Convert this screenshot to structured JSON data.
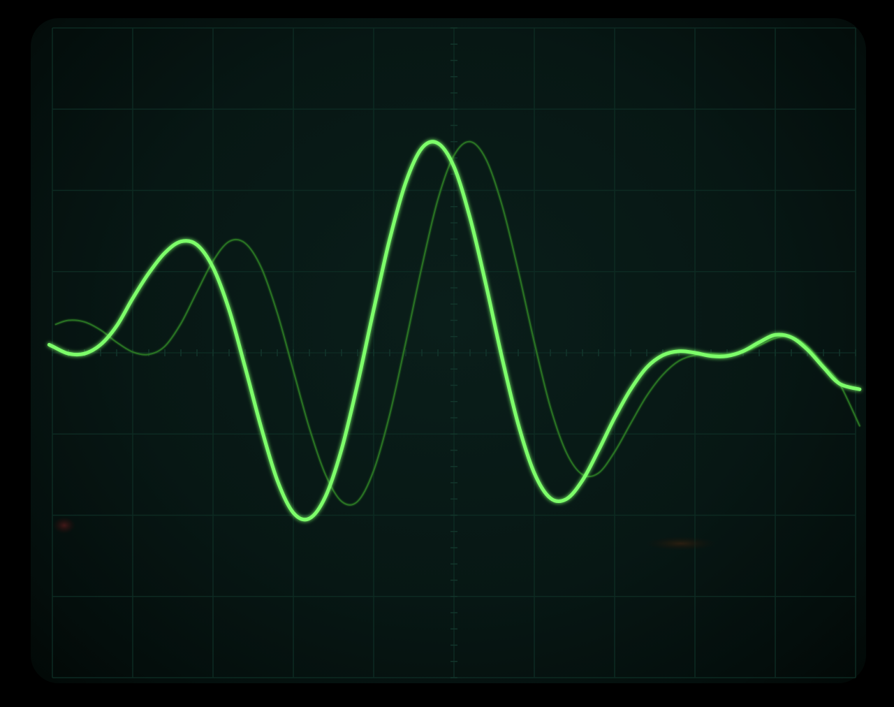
{
  "chart_data": {
    "type": "line",
    "title": "",
    "xlabel": "",
    "ylabel": "",
    "grid": true,
    "grid_divisions": {
      "x": 10,
      "y": 8
    },
    "xlim": [
      0,
      10
    ],
    "ylim": [
      -4,
      4
    ],
    "series": [
      {
        "trace": "bright",
        "color": "#7dff6a",
        "x": [
          -0.04,
          0,
          0.2,
          0.4,
          0.6,
          0.8,
          1,
          1.2,
          1.4,
          1.6,
          1.8,
          2,
          2.2,
          2.4,
          2.6,
          2.8,
          3,
          3.2,
          3.4,
          3.6,
          3.8,
          4,
          4.2,
          4.4,
          4.6,
          4.8,
          5,
          5.2,
          5.4,
          5.6,
          5.8,
          6,
          6.2,
          6.4,
          6.6,
          6.8,
          7,
          7.2,
          7.4,
          7.6,
          7.8,
          8,
          8.2,
          8.4,
          8.6,
          8.8,
          9,
          9.2,
          9.4,
          9.6,
          9.8,
          10.05
        ],
        "y": [
          0.1,
          0.08,
          -0.01,
          -0.01,
          0.1,
          0.33,
          0.67,
          0.98,
          1.23,
          1.37,
          1.33,
          1.05,
          0.53,
          -0.18,
          -0.92,
          -1.57,
          -1.97,
          -2.04,
          -1.77,
          -1.19,
          -0.38,
          0.53,
          1.4,
          2.1,
          2.52,
          2.58,
          2.29,
          1.66,
          0.83,
          -0.07,
          -0.88,
          -1.48,
          -1.79,
          -1.8,
          -1.57,
          -1.2,
          -0.8,
          -0.45,
          -0.18,
          -0.03,
          0.02,
          0.0,
          -0.04,
          -0.04,
          0.02,
          0.13,
          0.22,
          0.19,
          0.04,
          -0.18,
          -0.38,
          -0.45
        ]
      },
      {
        "trace": "dim",
        "color": "#2c7a24",
        "x": [
          0.04,
          0.2,
          0.4,
          0.6,
          0.8,
          1,
          1.2,
          1.4,
          1.6,
          1.8,
          2,
          2.2,
          2.4,
          2.6,
          2.8,
          3,
          3.2,
          3.4,
          3.6,
          3.8,
          4,
          4.2,
          4.4,
          4.6,
          4.8,
          5,
          5.2,
          5.4,
          5.6,
          5.8,
          6,
          6.2,
          6.4,
          6.6,
          6.8,
          7,
          7.2,
          7.4,
          7.6,
          7.8,
          8,
          8.2,
          8.4,
          8.6,
          8.8,
          9,
          9.2,
          9.4,
          9.6,
          9.8,
          10.05
        ],
        "y": [
          0.35,
          0.4,
          0.38,
          0.28,
          0.13,
          0.01,
          -0.02,
          0.08,
          0.36,
          0.75,
          1.13,
          1.37,
          1.35,
          1.05,
          0.49,
          -0.22,
          -0.93,
          -1.5,
          -1.83,
          -1.83,
          -1.45,
          -0.76,
          0.13,
          1.06,
          1.89,
          2.43,
          2.6,
          2.38,
          1.81,
          1.01,
          0.13,
          -0.67,
          -1.23,
          -1.5,
          -1.48,
          -1.22,
          -0.87,
          -0.53,
          -0.27,
          -0.1,
          -0.03,
          -0.01,
          -0.02,
          0.01,
          0.09,
          0.18,
          0.2,
          0.08,
          -0.15,
          -0.38,
          -0.9
        ]
      }
    ]
  }
}
